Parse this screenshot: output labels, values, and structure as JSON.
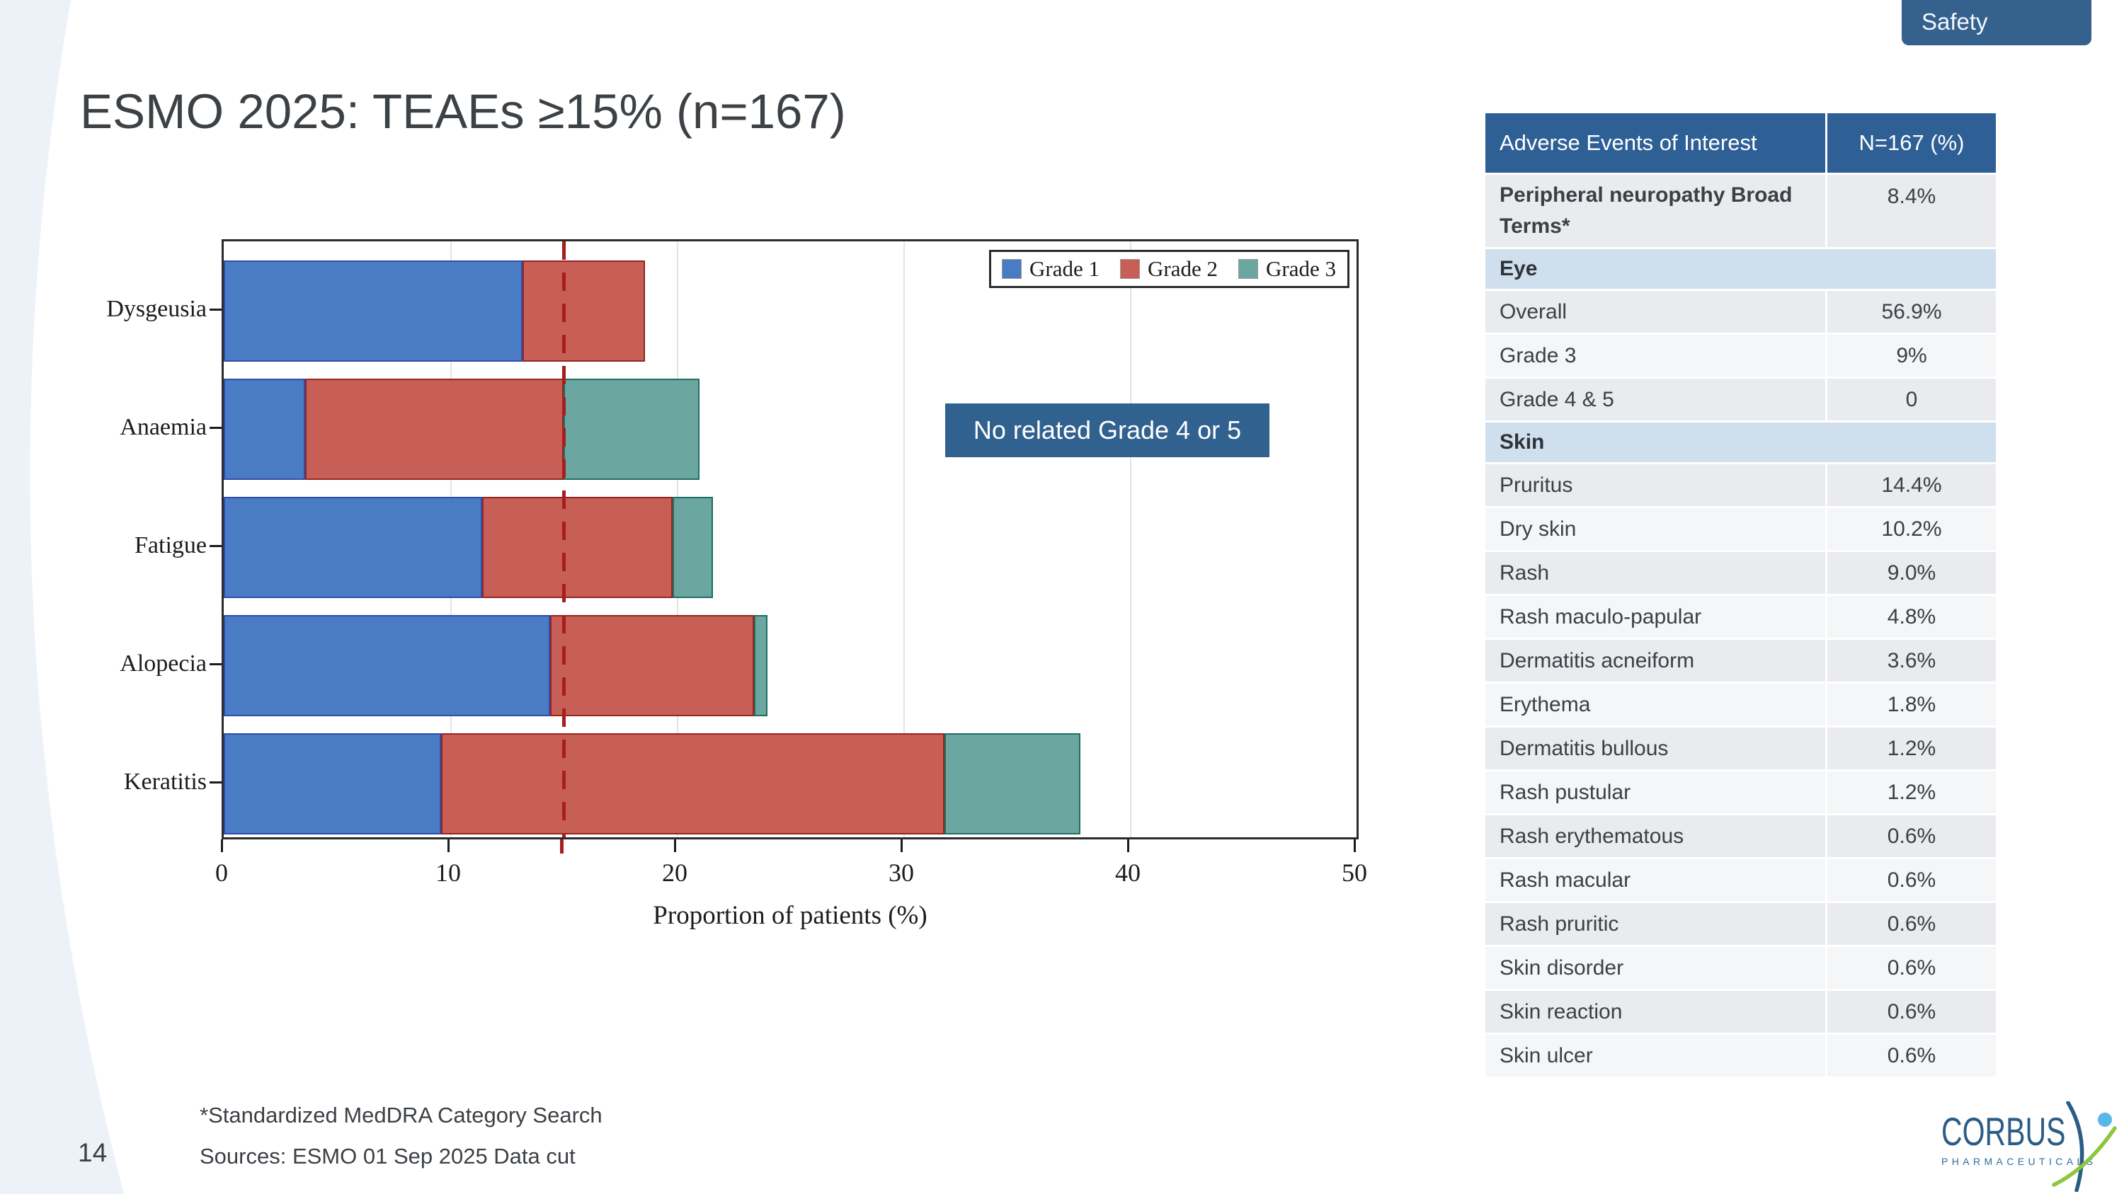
{
  "slide": {
    "tab_label": "Safety",
    "title": "ESMO 2025: TEAEs ≥15% (n=167)",
    "page_number": "14",
    "footnote": "*Standardized MedDRA Category Search",
    "sources": "Sources: ESMO 01 Sep 2025 Data cut",
    "annotation": "No related Grade 4 or 5"
  },
  "chart_data": {
    "type": "bar",
    "orientation": "horizontal",
    "stacked": true,
    "title": "",
    "xlabel": "Proportion of patients (%)",
    "ylabel": "",
    "xlim": [
      0,
      50
    ],
    "xticks": [
      0,
      10,
      20,
      30,
      40,
      50
    ],
    "gridlines": "vertical",
    "legend_position": "top-right",
    "categories": [
      "Dysgeusia",
      "Anaemia",
      "Fatigue",
      "Alopecia",
      "Keratitis"
    ],
    "series": [
      {
        "name": "Grade 1",
        "color": "#4a7cc3",
        "border": "#2f4dae",
        "values": [
          13.2,
          3.6,
          11.4,
          14.4,
          9.6
        ]
      },
      {
        "name": "Grade 2",
        "color": "#c85f57",
        "border": "#96241f",
        "values": [
          5.4,
          11.4,
          8.4,
          9.0,
          22.2
        ]
      },
      {
        "name": "Grade 3",
        "color": "#6ba7a0",
        "border": "#1f6e62",
        "values": [
          0,
          6.0,
          1.8,
          0.6,
          6.0
        ]
      }
    ],
    "reference_line": {
      "value": 15,
      "style": "dashed",
      "color": "#a61e1e"
    }
  },
  "table": {
    "headers": [
      "Adverse Events of Interest",
      "N=167 (%)"
    ],
    "rows": [
      {
        "type": "data",
        "tall": true,
        "label": "Peripheral neuropathy Broad Terms*",
        "value": "8.4%"
      },
      {
        "type": "section",
        "label": "Eye"
      },
      {
        "type": "data",
        "label": "Overall",
        "value": "56.9%"
      },
      {
        "type": "data",
        "label": "Grade 3",
        "value": "9%"
      },
      {
        "type": "data",
        "label": "Grade 4 & 5",
        "value": "0"
      },
      {
        "type": "section",
        "label": "Skin"
      },
      {
        "type": "data",
        "label": "Pruritus",
        "value": "14.4%"
      },
      {
        "type": "data",
        "label": "Dry skin",
        "value": "10.2%"
      },
      {
        "type": "data",
        "label": "Rash",
        "value": "9.0%"
      },
      {
        "type": "data",
        "label": "Rash maculo-papular",
        "value": "4.8%"
      },
      {
        "type": "data",
        "label": "Dermatitis acneiform",
        "value": "3.6%"
      },
      {
        "type": "data",
        "label": "Erythema",
        "value": "1.8%"
      },
      {
        "type": "data",
        "label": "Dermatitis bullous",
        "value": "1.2%"
      },
      {
        "type": "data",
        "label": "Rash pustular",
        "value": "1.2%"
      },
      {
        "type": "data",
        "label": "Rash erythematous",
        "value": "0.6%"
      },
      {
        "type": "data",
        "label": "Rash macular",
        "value": "0.6%"
      },
      {
        "type": "data",
        "label": "Rash pruritic",
        "value": "0.6%"
      },
      {
        "type": "data",
        "label": "Skin disorder",
        "value": "0.6%"
      },
      {
        "type": "data",
        "label": "Skin reaction",
        "value": "0.6%"
      },
      {
        "type": "data",
        "label": "Skin ulcer",
        "value": "0.6%"
      }
    ]
  },
  "logo": {
    "name": "CORBUS",
    "subtext": "PHARMACEUTICALS"
  },
  "colors": {
    "accent_blue": "#31618f",
    "table_header_blue": "#2e6096",
    "section_row_blue": "#cfdfee",
    "row_gray": "#e9ebee",
    "row_light": "#f4f6f8",
    "swoosh_blue": "#edf2f9",
    "grade1_blue": "#4a7cc3",
    "grade2_red": "#c85f57",
    "grade3_teal": "#6ba7a0",
    "ref_line_red": "#a61e1e",
    "logo_blue": "#2b5c86",
    "logo_green": "#8dc63f",
    "logo_lightblue": "#57b7e8",
    "text_dark": "#3b4045"
  }
}
